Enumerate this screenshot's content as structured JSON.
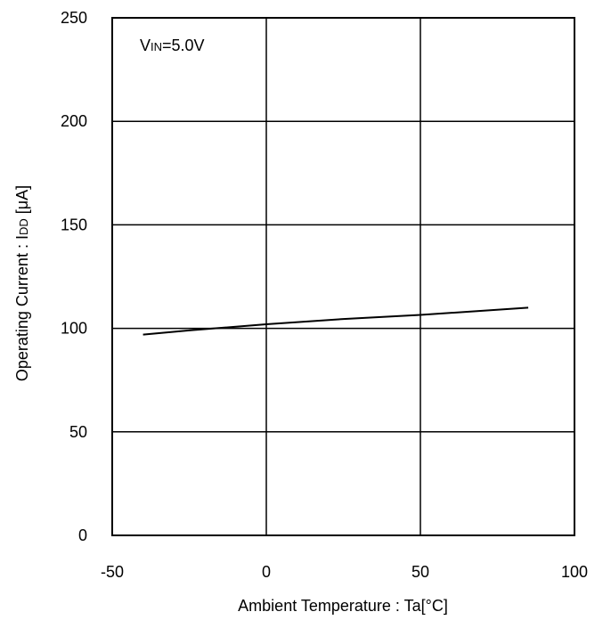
{
  "chart_data": {
    "type": "line",
    "xlabel": "Ambient Temperature : Ta[°C]",
    "ylabel_main": "Operating Current : I",
    "ylabel_sub": "DD",
    "ylabel_tail": " [μA]",
    "xlim": [
      -50,
      100
    ],
    "ylim": [
      0,
      250
    ],
    "xticks": [
      -50,
      0,
      50,
      100
    ],
    "yticks": [
      0,
      50,
      100,
      150,
      200,
      250
    ],
    "grid": true,
    "annotation": {
      "main": "V",
      "sub": "IN",
      "tail": "=5.0V"
    },
    "series": [
      {
        "x": [
          -40,
          -25,
          0,
          25,
          50,
          85
        ],
        "y": [
          97,
          99,
          102,
          104.5,
          106.5,
          110
        ]
      }
    ]
  }
}
